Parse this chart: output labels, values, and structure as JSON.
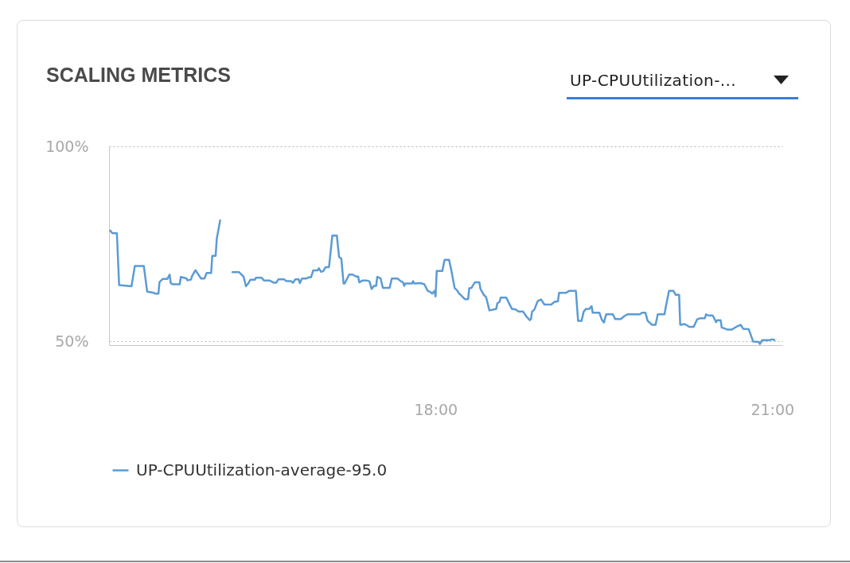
{
  "chart_data": {
    "type": "line",
    "title": "SCALING METRICS",
    "annotations": [
      "UP-CPUUtilization-..."
    ],
    "xlim": [
      15.09,
      21.09
    ],
    "xticks": [
      {
        "value": 18,
        "label": "18:00"
      },
      {
        "value": 21,
        "label": "21:00"
      }
    ],
    "ylim": [
      49,
      100
    ],
    "yticks": [
      {
        "value": 50,
        "label": "50%"
      },
      {
        "value": 100,
        "label": "100%"
      }
    ],
    "grid": "y",
    "legend": "bottom left",
    "x": [
      15.1,
      15.12,
      15.16,
      15.18,
      15.29,
      15.32,
      15.4,
      15.43,
      15.49,
      15.5,
      15.53,
      15.54,
      15.57,
      15.61,
      15.63,
      15.64,
      15.66,
      15.72,
      15.73,
      15.78,
      15.79,
      15.82,
      15.83,
      15.86,
      15.87,
      15.91,
      15.94,
      15.96,
      16.0,
      16.01,
      16.04,
      16.05,
      16.08,
      16.13,
      16.19,
      16.25,
      16.29,
      16.31,
      16.33,
      16.35,
      16.39,
      16.4,
      16.45,
      16.47,
      16.52,
      16.56,
      16.58,
      16.6,
      16.65,
      16.67,
      16.71,
      16.73,
      16.75,
      16.78,
      16.79,
      16.81,
      16.85,
      16.87,
      16.89,
      16.91,
      16.95,
      16.96,
      16.98,
      17.0,
      17.02,
      17.05,
      17.08,
      17.12,
      17.14,
      17.16,
      17.18,
      17.19,
      17.23,
      17.26,
      17.29,
      17.31,
      17.32,
      17.35,
      17.38,
      17.41,
      17.43,
      17.45,
      17.47,
      17.48,
      17.51,
      17.53,
      17.59,
      17.61,
      17.66,
      17.69,
      17.71,
      17.72,
      17.73,
      17.79,
      17.8,
      17.81,
      17.87,
      17.9,
      17.93,
      17.95,
      17.97,
      17.99,
      18.0,
      18.01,
      18.06,
      18.08,
      18.12,
      18.14,
      18.17,
      18.19,
      18.21,
      18.22,
      18.26,
      18.29,
      18.3,
      18.32,
      18.35,
      18.39,
      18.4,
      18.43,
      18.45,
      18.48,
      18.54,
      18.55,
      18.57,
      18.58,
      18.63,
      18.65,
      18.68,
      18.71,
      18.74,
      18.78,
      18.81,
      18.84,
      18.85,
      18.86,
      18.88,
      18.91,
      18.94,
      18.97,
      19.03,
      19.06,
      19.09,
      19.1,
      19.16,
      19.19,
      19.25,
      19.27,
      19.3,
      19.32,
      19.34,
      19.37,
      19.39,
      19.4,
      19.46,
      19.48,
      19.5,
      19.52,
      19.58,
      19.6,
      19.65,
      19.68,
      19.71,
      19.82,
      19.84,
      19.87,
      19.89,
      19.93,
      19.96,
      19.98,
      20.04,
      20.05,
      20.08,
      20.12,
      20.14,
      20.17,
      20.18,
      20.22,
      20.26,
      20.3,
      20.33,
      20.36,
      20.4,
      20.41,
      20.43,
      20.47,
      20.5,
      20.51,
      20.54,
      20.55,
      20.6,
      20.64,
      20.68,
      20.72,
      20.74,
      20.79,
      20.83,
      20.88,
      20.89,
      20.91,
      20.98,
      21.0,
      21.02
    ],
    "series": [
      {
        "name": "UP-CPUUtilization-average-95.0",
        "color": "#5b9bd5",
        "values": [
          78.4,
          77.7,
          77.7,
          64.4,
          64.1,
          69.3,
          69.3,
          62.7,
          62.4,
          62.2,
          62.2,
          65.2,
          66.0,
          66.0,
          67.1,
          64.9,
          64.6,
          64.6,
          66.5,
          66.1,
          65.6,
          65.8,
          66.7,
          68.2,
          67.8,
          66.1,
          66.1,
          67.5,
          67.5,
          71.9,
          71.9,
          76.3,
          81.0,
          null,
          67.7,
          67.7,
          66.5,
          64.1,
          64.8,
          65.8,
          65.8,
          66.3,
          66.3,
          65.6,
          65.6,
          65.0,
          65.0,
          65.9,
          65.9,
          65.4,
          65.4,
          65.0,
          65.9,
          65.9,
          64.9,
          66.1,
          66.1,
          66.4,
          66.4,
          68.2,
          68.2,
          68.7,
          67.8,
          68.0,
          69.0,
          69.0,
          77.1,
          77.1,
          71.6,
          71.2,
          64.8,
          64.8,
          67.1,
          67.1,
          66.6,
          66.6,
          65.1,
          65.6,
          65.6,
          65.4,
          63.4,
          64.2,
          64.2,
          66.5,
          66.1,
          63.7,
          63.7,
          66.1,
          66.1,
          65.4,
          65.1,
          64.2,
          64.8,
          64.8,
          65.4,
          64.8,
          64.9,
          64.6,
          62.9,
          62.7,
          62.2,
          62.9,
          61.5,
          68.0,
          68.0,
          70.9,
          70.9,
          68.2,
          63.6,
          63.1,
          62.2,
          62.0,
          60.8,
          60.8,
          63.6,
          63.7,
          65.1,
          65.1,
          63.4,
          61.9,
          61.3,
          57.9,
          58.3,
          59.7,
          60.1,
          61.2,
          61.2,
          60.0,
          58.3,
          58.2,
          57.6,
          57.6,
          56.3,
          55.4,
          55.7,
          57.6,
          58.1,
          60.3,
          60.7,
          59.4,
          59.4,
          60.1,
          60.2,
          62.4,
          62.4,
          62.9,
          62.9,
          55.2,
          55.2,
          57.6,
          58.3,
          58.3,
          59.0,
          57.3,
          57.3,
          55.6,
          54.8,
          56.9,
          56.9,
          55.7,
          55.7,
          56.4,
          56.9,
          56.9,
          57.3,
          57.3,
          55.2,
          54.2,
          54.2,
          56.9,
          56.9,
          58.6,
          62.9,
          62.9,
          61.9,
          61.9,
          54.2,
          54.4,
          53.7,
          53.7,
          55.6,
          55.9,
          55.9,
          56.9,
          56.6,
          56.6,
          54.9,
          55.4,
          55.4,
          53.5,
          53.0,
          53.0,
          53.7,
          54.2,
          53.2,
          53.1,
          49.9,
          49.8,
          49.3,
          50.3,
          50.3,
          50.5,
          50.3
        ]
      }
    ]
  }
}
